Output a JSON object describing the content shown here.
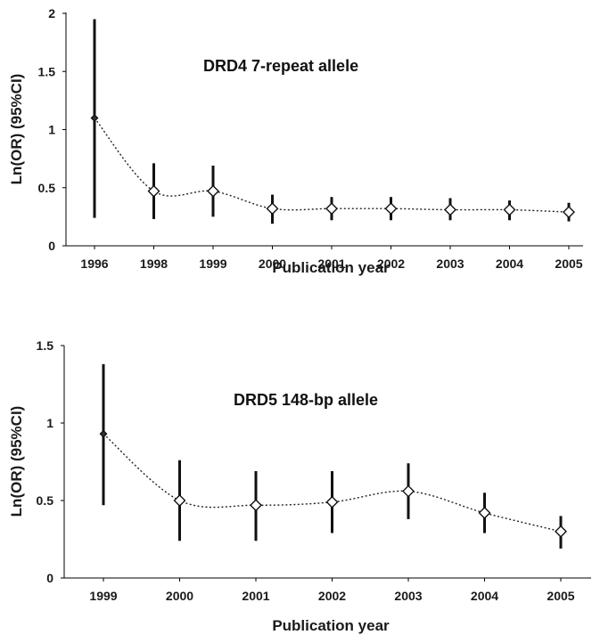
{
  "chart_data": [
    {
      "type": "line",
      "title": "DRD4 7-repeat allele",
      "xlabel": "Publication year",
      "ylabel": "Ln(OR) (95%CI)",
      "ylim": [
        0,
        2
      ],
      "yticks": [
        "0",
        "0.5",
        "1",
        "1.5",
        "2"
      ],
      "categories": [
        "1996",
        "1998",
        "1999",
        "2000",
        "2001",
        "2002",
        "2003",
        "2004",
        "2005"
      ],
      "values": [
        1.1,
        0.47,
        0.47,
        0.32,
        0.32,
        0.32,
        0.31,
        0.31,
        0.29
      ],
      "ci_low": [
        0.24,
        0.23,
        0.25,
        0.19,
        0.22,
        0.22,
        0.22,
        0.22,
        0.21
      ],
      "ci_high": [
        1.95,
        0.71,
        0.69,
        0.44,
        0.42,
        0.42,
        0.41,
        0.39,
        0.37
      ],
      "marker": "diamond",
      "line_style": "dotted",
      "grid": false
    },
    {
      "type": "line",
      "title": "DRD5 148-bp allele",
      "xlabel": "Publication year",
      "ylabel": "Ln(OR) (95%CI)",
      "ylim": [
        0,
        1.5
      ],
      "yticks": [
        "0",
        "0.5",
        "1",
        "1.5"
      ],
      "categories": [
        "1999",
        "2000",
        "2001",
        "2002",
        "2003",
        "2004",
        "2005"
      ],
      "values": [
        0.93,
        0.5,
        0.47,
        0.49,
        0.56,
        0.42,
        0.3
      ],
      "ci_low": [
        0.47,
        0.24,
        0.24,
        0.29,
        0.38,
        0.29,
        0.19
      ],
      "ci_high": [
        1.38,
        0.76,
        0.69,
        0.69,
        0.74,
        0.55,
        0.4
      ],
      "marker": "diamond",
      "line_style": "dotted",
      "grid": false
    }
  ]
}
